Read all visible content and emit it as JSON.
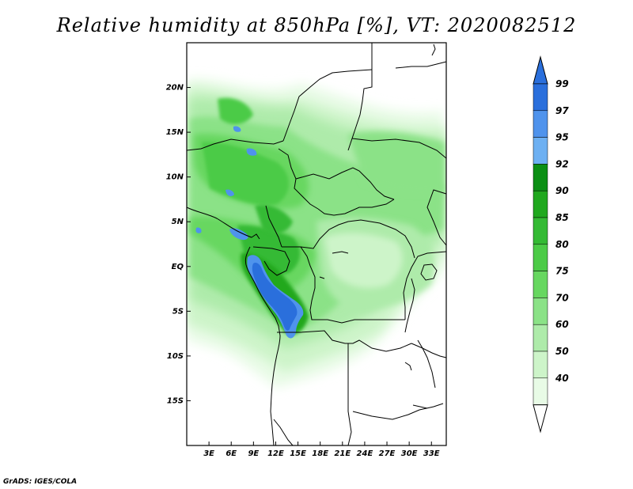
{
  "title": "Relative humidity at 850hPa [%], VT: 2020082512",
  "credit": "GrADS: IGES/COLA",
  "map": {
    "variable": "Relative humidity",
    "level_hPa": 850,
    "units": "%",
    "valid_time": "2020082512",
    "lon_range": [
      0,
      35
    ],
    "lat_range": [
      -20,
      25
    ],
    "lat_ticks": [
      "20N",
      "15N",
      "10N",
      "5N",
      "EQ",
      "5S",
      "10S",
      "15S"
    ],
    "lon_ticks": [
      "3E",
      "6E",
      "9E",
      "12E",
      "15E",
      "18E",
      "21E",
      "24E",
      "27E",
      "30E",
      "33E"
    ]
  },
  "colorbar": {
    "levels": [
      "99",
      "97",
      "95",
      "92",
      "90",
      "85",
      "80",
      "75",
      "70",
      "60",
      "50",
      "40"
    ],
    "colors": [
      "#2a6fdc",
      "#4f93ec",
      "#6db0f2",
      "#0b8f14",
      "#20a81e",
      "#34ba34",
      "#4ccb47",
      "#67d760",
      "#8be287",
      "#aeebaa",
      "#cdf4c9",
      "#e8fbe6",
      "#ffffff"
    ]
  }
}
